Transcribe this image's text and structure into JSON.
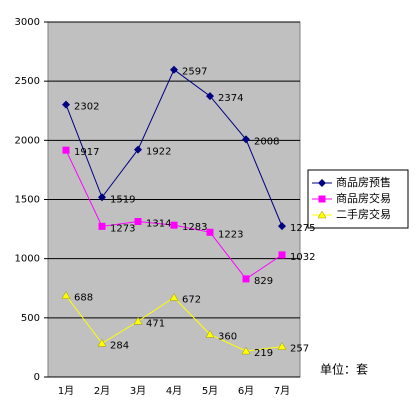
{
  "chart_data": {
    "type": "line",
    "categories": [
      "1月",
      "2月",
      "3月",
      "4月",
      "5月",
      "6月",
      "7月"
    ],
    "series": [
      {
        "name": "商品房预售",
        "color": "#000080",
        "marker": "diamond",
        "values": [
          2302,
          1519,
          1922,
          2597,
          2374,
          2008,
          1275
        ]
      },
      {
        "name": "商品房交易",
        "color": "#ff00ff",
        "marker": "square",
        "values": [
          1917,
          1273,
          1314,
          1283,
          1223,
          829,
          1032
        ]
      },
      {
        "name": "二手房交易",
        "color": "#ffff00",
        "marker": "triangle",
        "values": [
          688,
          284,
          471,
          672,
          360,
          219,
          257
        ]
      }
    ],
    "ylim": [
      0,
      3000
    ],
    "yticks": [
      0,
      500,
      1000,
      1500,
      2000,
      2500,
      3000
    ],
    "grid": true,
    "unit_label": "单位：套"
  }
}
